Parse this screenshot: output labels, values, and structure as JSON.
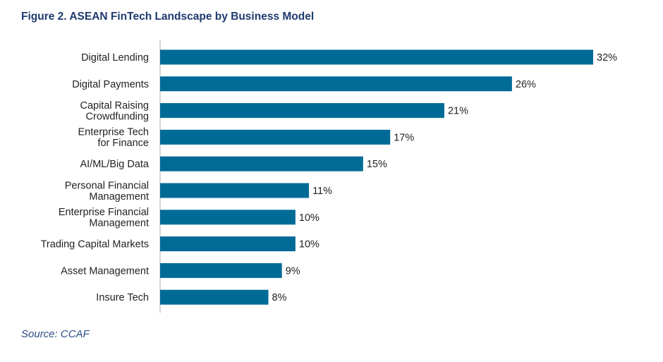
{
  "figure": {
    "title": "Figure 2. ASEAN FinTech Landscape by Business Model",
    "source": "Source: CCAF"
  },
  "colors": {
    "bar": "#006b96",
    "axis": "#c8c8c8",
    "title": "#1f3a6e",
    "source": "#2c4f86"
  },
  "chart_data": {
    "type": "bar",
    "orientation": "horizontal",
    "title": "Figure 2. ASEAN FinTech Landscape by Business Model",
    "xlabel": "",
    "ylabel": "",
    "xlim": [
      0,
      32
    ],
    "grid": false,
    "legend": "none",
    "categories": [
      [
        "Digital Lending"
      ],
      [
        "Digital Payments"
      ],
      [
        "Capital Raising",
        "Crowdfunding"
      ],
      [
        "Enterprise Tech",
        "for Finance"
      ],
      [
        "AI/ML/Big Data"
      ],
      [
        "Personal Financial",
        "Management"
      ],
      [
        "Enterprise Financial",
        "Management"
      ],
      [
        "Trading Capital Markets"
      ],
      [
        "Asset Management"
      ],
      [
        "Insure Tech"
      ]
    ],
    "values": [
      32,
      26,
      21,
      17,
      15,
      11,
      10,
      10,
      9,
      8
    ],
    "value_labels": [
      "32%",
      "26%",
      "21%",
      "17%",
      "15%",
      "11%",
      "10%",
      "10%",
      "9%",
      "8%"
    ]
  }
}
